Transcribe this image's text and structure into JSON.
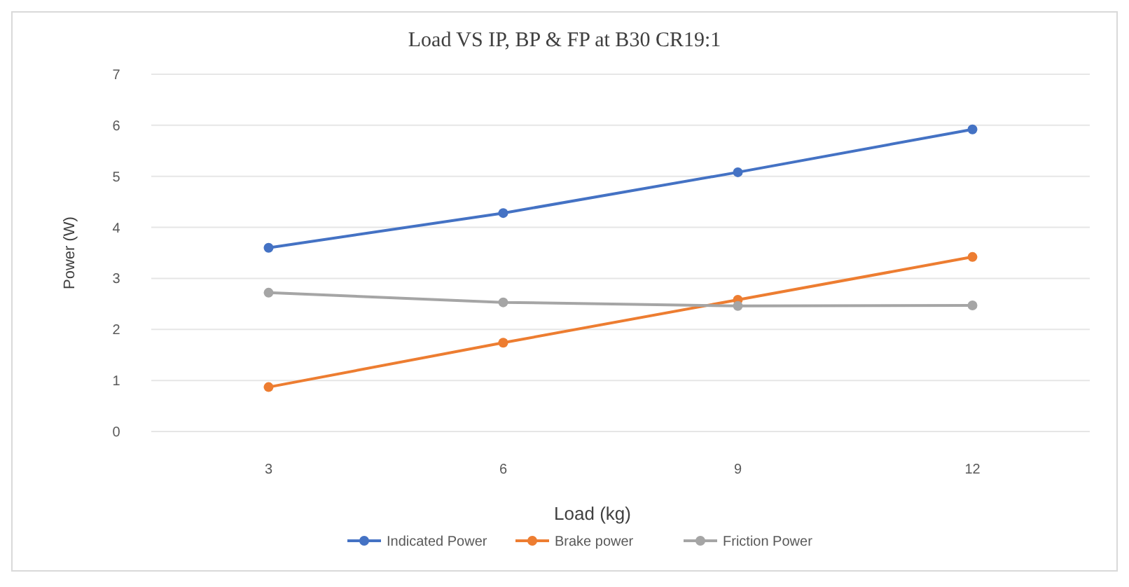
{
  "chart_data": {
    "type": "line",
    "title": "Load VS IP, BP & FP at B30 CR19:1",
    "xlabel": "Load (kg)",
    "ylabel": "Power (W)",
    "categories": [
      "3",
      "6",
      "9",
      "12"
    ],
    "series": [
      {
        "name": "Indicated Power",
        "color": "#4472c4",
        "values": [
          3.6,
          4.28,
          5.08,
          5.92
        ]
      },
      {
        "name": "Brake power",
        "color": "#ed7d31",
        "values": [
          0.87,
          1.74,
          2.58,
          3.42
        ]
      },
      {
        "name": "Friction Power",
        "color": "#a5a5a5",
        "values": [
          2.72,
          2.53,
          2.46,
          2.47
        ]
      }
    ],
    "ylim": [
      0,
      7
    ],
    "yticks": [
      0,
      1,
      2,
      3,
      4,
      5,
      6,
      7
    ],
    "grid": "y",
    "legend": "bottom",
    "marker": "circle",
    "line_style": "solid"
  }
}
